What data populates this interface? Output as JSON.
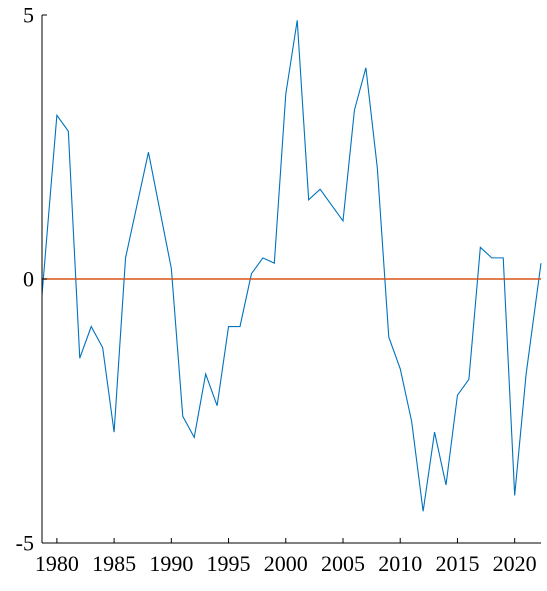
{
  "chart_data": {
    "type": "line",
    "title": "",
    "xlabel": "",
    "ylabel": "",
    "xlim": [
      1978.7,
      2022.3
    ],
    "ylim": [
      -5,
      5
    ],
    "grid": false,
    "legend": "none",
    "x_ticks": [
      1980,
      1985,
      1990,
      1995,
      2000,
      2005,
      2010,
      2015,
      2020
    ],
    "x_tick_labels": [
      "1980",
      "1985",
      "1990",
      "1995",
      "2000",
      "2005",
      "2010",
      "2015",
      "2020"
    ],
    "y_ticks": [
      -5,
      0,
      5
    ],
    "y_tick_labels": [
      "-5",
      "0",
      "5"
    ],
    "colors": {
      "series": "#0072bd",
      "reference": "#d95319",
      "axis": "#000000"
    },
    "series": [
      {
        "x": [
          1978.7,
          1980,
          1981,
          1982,
          1983,
          1984,
          1985,
          1986,
          1987,
          1988,
          1989,
          1990,
          1991,
          1992,
          1993,
          1994,
          1995,
          1996,
          1997,
          1998,
          1999,
          2000,
          2001,
          2002,
          2003,
          2004,
          2005,
          2006,
          2007,
          2008,
          2009,
          2010,
          2011,
          2012,
          2013,
          2014,
          2015,
          2016,
          2017,
          2018,
          2019,
          2020,
          2021,
          2022.3
        ],
        "values": [
          -0.3,
          3.1,
          2.8,
          -1.5,
          -0.9,
          -1.3,
          -2.9,
          0.4,
          1.4,
          2.4,
          1.3,
          0.2,
          -2.6,
          -3.0,
          -1.8,
          -2.4,
          -0.9,
          -0.9,
          0.1,
          0.4,
          0.3,
          3.5,
          4.9,
          1.5,
          1.7,
          1.4,
          1.1,
          3.2,
          4.0,
          2.1,
          -1.1,
          -1.7,
          -2.7,
          -4.4,
          -2.9,
          -3.9,
          -2.2,
          -1.9,
          0.6,
          0.4,
          0.4,
          -4.1,
          -1.8,
          0.3
        ]
      },
      {
        "x": [
          1978.7,
          2022.3
        ],
        "values": [
          0,
          0
        ]
      }
    ]
  }
}
